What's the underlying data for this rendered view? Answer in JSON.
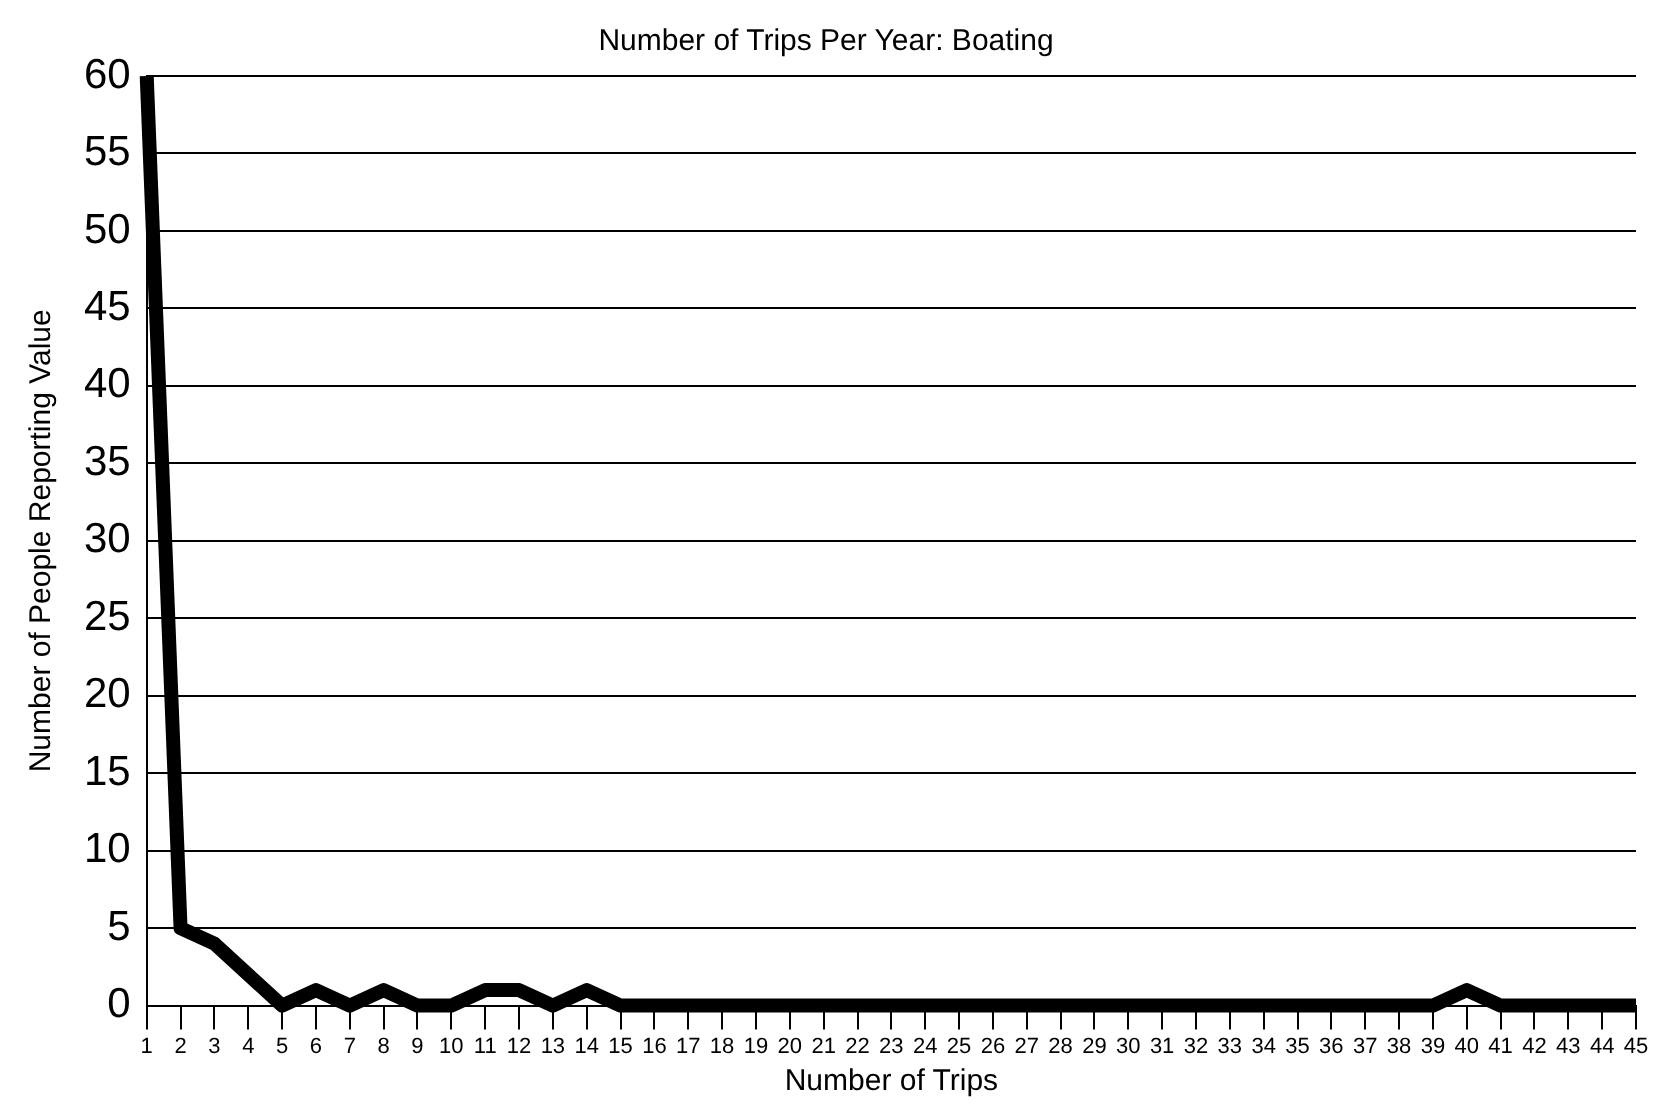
{
  "chart_data": {
    "type": "line",
    "title": "Number of Trips Per Year: Boating",
    "xlabel": "Number of Trips",
    "ylabel": "Number of People Reporting Value",
    "x": [
      1,
      2,
      3,
      4,
      5,
      6,
      7,
      8,
      9,
      10,
      11,
      12,
      13,
      14,
      15,
      16,
      17,
      18,
      19,
      20,
      21,
      22,
      23,
      24,
      25,
      26,
      27,
      28,
      29,
      30,
      31,
      32,
      33,
      34,
      35,
      36,
      37,
      38,
      39,
      40,
      41,
      42,
      43,
      44,
      45
    ],
    "series": [
      {
        "color": "#000000",
        "values": [
          60,
          5,
          4,
          2,
          0,
          1,
          0,
          1,
          0,
          0,
          1,
          1,
          0,
          1,
          0,
          0,
          0,
          0,
          0,
          0,
          0,
          0,
          0,
          0,
          0,
          0,
          0,
          0,
          0,
          0,
          0,
          0,
          0,
          0,
          0,
          0,
          0,
          0,
          0,
          1,
          0,
          0,
          0,
          0,
          0
        ]
      }
    ],
    "xlim": [
      1,
      45
    ],
    "xticks": [
      1,
      2,
      3,
      4,
      5,
      6,
      7,
      8,
      9,
      10,
      11,
      12,
      13,
      14,
      15,
      16,
      17,
      18,
      19,
      20,
      21,
      22,
      23,
      24,
      25,
      26,
      27,
      28,
      29,
      30,
      31,
      32,
      33,
      34,
      35,
      36,
      37,
      38,
      39,
      40,
      41,
      42,
      43,
      44,
      45
    ],
    "ylim": [
      0,
      60
    ],
    "yticks": [
      0,
      5,
      10,
      15,
      20,
      25,
      30,
      35,
      40,
      45,
      50,
      55,
      60
    ],
    "grid": "y",
    "legend": false,
    "marker": "none",
    "line_style": "solid"
  }
}
